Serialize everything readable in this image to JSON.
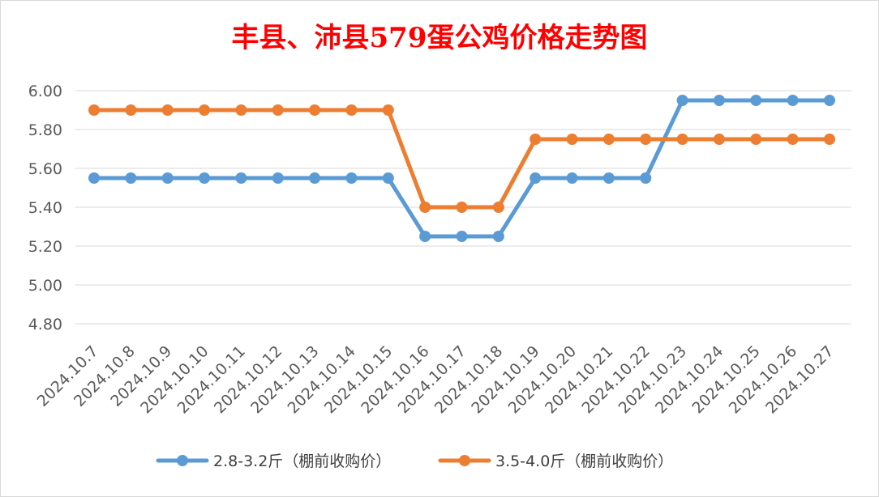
{
  "chart_data": {
    "type": "line",
    "title": "丰县、沛县579蛋公鸡价格走势图",
    "xlabel": "",
    "ylabel": "",
    "ylim": [
      4.8,
      6.0
    ],
    "yticks": [
      "4.80",
      "5.00",
      "5.20",
      "5.40",
      "5.60",
      "5.80",
      "6.00"
    ],
    "grid": true,
    "legend_position": "bottom",
    "categories": [
      "2024.10.7",
      "2024.10.8",
      "2024.10.9",
      "2024.10.10",
      "2024.10.11",
      "2024.10.12",
      "2024.10.13",
      "2024.10.14",
      "2024.10.15",
      "2024.10.16",
      "2024.10.17",
      "2024.10.18",
      "2024.10.19",
      "2024.10.20",
      "2024.10.21",
      "2024.10.22",
      "2024.10.23",
      "2024.10.24",
      "2024.10.25",
      "2024.10.26",
      "2024.10.27"
    ],
    "series": [
      {
        "name": "2.8-3.2斤（棚前收购价）",
        "color": "#5b9bd5",
        "values": [
          5.55,
          5.55,
          5.55,
          5.55,
          5.55,
          5.55,
          5.55,
          5.55,
          5.55,
          5.25,
          5.25,
          5.25,
          5.55,
          5.55,
          5.55,
          5.55,
          5.95,
          5.95,
          5.95,
          5.95,
          5.95
        ]
      },
      {
        "name": "3.5-4.0斤（棚前收购价）",
        "color": "#ed7d31",
        "values": [
          5.9,
          5.9,
          5.9,
          5.9,
          5.9,
          5.9,
          5.9,
          5.9,
          5.9,
          5.4,
          5.4,
          5.4,
          5.75,
          5.75,
          5.75,
          5.75,
          5.75,
          5.75,
          5.75,
          5.75,
          5.75
        ]
      }
    ]
  }
}
